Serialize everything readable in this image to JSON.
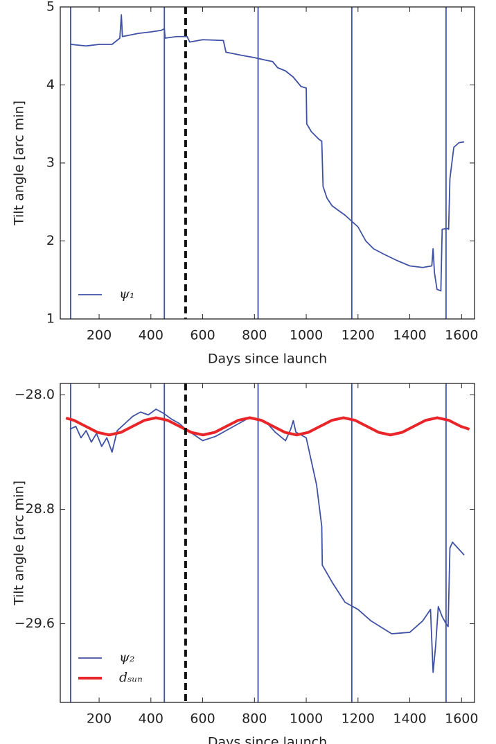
{
  "chart_data": [
    {
      "type": "line",
      "xlabel": "Days since launch",
      "ylabel": "Tilt angle [arc min]",
      "xlim": [
        50,
        1650
      ],
      "xticks": [
        200,
        400,
        600,
        800,
        1000,
        1200,
        1400,
        1600
      ],
      "ylim": [
        1,
        5
      ],
      "yticks": [
        1,
        2,
        3,
        4,
        5
      ],
      "legend": "lower left",
      "vlines": [
        90,
        452,
        814,
        1176,
        1540
      ],
      "vline_color": "#3f51a3",
      "dashed_vline": 534,
      "series": [
        {
          "name": "ψ₁",
          "color": "#3f51a3",
          "x": [
            90,
            150,
            200,
            250,
            280,
            286,
            290,
            350,
            400,
            440,
            452,
            455,
            500,
            540,
            550,
            600,
            680,
            690,
            750,
            800,
            840,
            870,
            890,
            920,
            950,
            980,
            1000,
            1002,
            1020,
            1050,
            1060,
            1065,
            1080,
            1100,
            1150,
            1200,
            1230,
            1260,
            1300,
            1350,
            1400,
            1450,
            1485,
            1490,
            1495,
            1505,
            1520,
            1525,
            1545,
            1550,
            1555,
            1570,
            1590,
            1610
          ],
          "values": [
            4.52,
            4.5,
            4.52,
            4.52,
            4.6,
            4.9,
            4.62,
            4.66,
            4.68,
            4.7,
            4.72,
            4.6,
            4.62,
            4.62,
            4.55,
            4.58,
            4.57,
            4.42,
            4.38,
            4.35,
            4.32,
            4.3,
            4.22,
            4.18,
            4.1,
            3.98,
            3.96,
            3.5,
            3.4,
            3.3,
            3.28,
            2.7,
            2.55,
            2.45,
            2.33,
            2.18,
            2.0,
            1.9,
            1.83,
            1.75,
            1.68,
            1.66,
            1.68,
            1.9,
            1.6,
            1.38,
            1.36,
            2.15,
            2.16,
            2.15,
            2.8,
            3.2,
            3.26,
            3.27
          ]
        }
      ]
    },
    {
      "type": "line",
      "xlabel": "Days since launch",
      "ylabel": "Tilt angle [arc min]",
      "xlim": [
        50,
        1650
      ],
      "xticks": [
        200,
        400,
        600,
        800,
        1000,
        1200,
        1400,
        1600
      ],
      "ylim": [
        -30.15,
        -27.92
      ],
      "yticks": [
        {
          "value": -28.0,
          "label": "−28.0"
        },
        {
          "value": -28.8,
          "label": "−28.8"
        },
        {
          "value": -29.6,
          "label": "−29.6"
        }
      ],
      "legend": "lower left",
      "vlines": [
        90,
        452,
        814,
        1176,
        1540
      ],
      "vline_color": "#3f51a3",
      "dashed_vline": 534,
      "series": [
        {
          "name": "ψ₂",
          "color": "#3f51a3",
          "x": [
            87,
            110,
            130,
            150,
            170,
            190,
            210,
            230,
            250,
            270,
            300,
            330,
            360,
            390,
            420,
            450,
            480,
            510,
            540,
            560,
            600,
            650,
            700,
            740,
            780,
            820,
            850,
            880,
            920,
            940,
            950,
            960,
            1000,
            1040,
            1060,
            1062,
            1100,
            1150,
            1200,
            1250,
            1330,
            1400,
            1450,
            1480,
            1490,
            1500,
            1510,
            1525,
            1540,
            1548,
            1555,
            1565,
            1610
          ],
          "values": [
            -28.24,
            -28.22,
            -28.3,
            -28.25,
            -28.33,
            -28.27,
            -28.36,
            -28.3,
            -28.4,
            -28.25,
            -28.2,
            -28.15,
            -28.12,
            -28.14,
            -28.1,
            -28.13,
            -28.17,
            -28.2,
            -28.25,
            -28.27,
            -28.32,
            -28.29,
            -28.24,
            -28.2,
            -28.16,
            -28.17,
            -28.2,
            -28.26,
            -28.32,
            -28.24,
            -28.18,
            -28.26,
            -28.3,
            -28.63,
            -28.92,
            -29.19,
            -29.31,
            -29.45,
            -29.5,
            -29.58,
            -29.67,
            -29.66,
            -29.58,
            -29.5,
            -29.94,
            -29.75,
            -29.48,
            -29.55,
            -29.6,
            -29.62,
            -29.07,
            -29.03,
            -29.12
          ]
        },
        {
          "name": "dₛᵤₙ",
          "color": "#e8262a",
          "x": [
            72,
            103.25,
            148.5,
            193.75,
            239,
            284.25,
            329.5,
            374.75,
            420,
            465.25,
            510.5,
            555.75,
            601,
            646.25,
            691.5,
            736.75,
            782,
            827.25,
            872.5,
            917.75,
            963,
            1008.25,
            1053.5,
            1098.75,
            1144,
            1189.25,
            1234.5,
            1279.75,
            1325,
            1370.25,
            1415.5,
            1460.75,
            1506,
            1551.25,
            1596.5,
            1630
          ],
          "values": [
            -28.162,
            -28.178,
            -28.22,
            -28.262,
            -28.28,
            -28.262,
            -28.22,
            -28.178,
            -28.16,
            -28.178,
            -28.22,
            -28.262,
            -28.28,
            -28.262,
            -28.22,
            -28.178,
            -28.16,
            -28.178,
            -28.22,
            -28.262,
            -28.28,
            -28.262,
            -28.22,
            -28.178,
            -28.16,
            -28.178,
            -28.22,
            -28.262,
            -28.28,
            -28.262,
            -28.22,
            -28.178,
            -28.16,
            -28.178,
            -28.22,
            -28.24
          ]
        }
      ]
    }
  ]
}
